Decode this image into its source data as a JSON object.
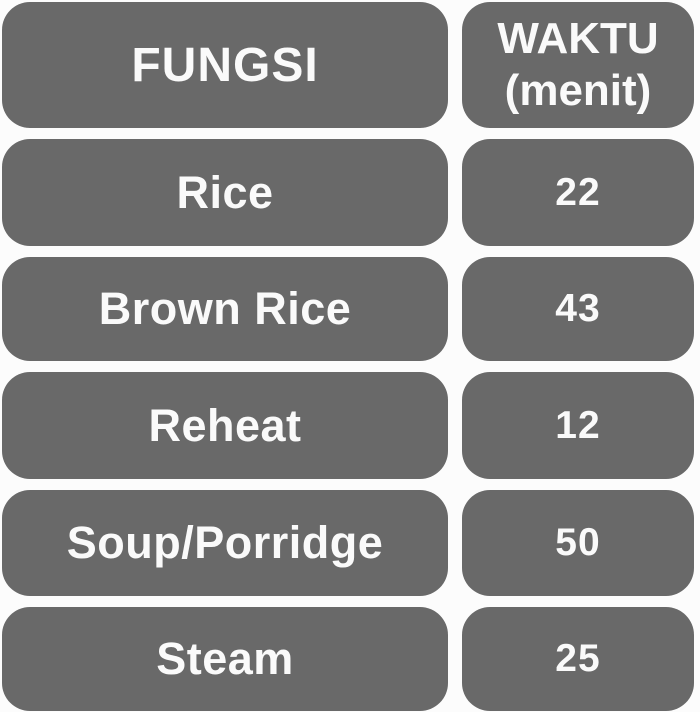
{
  "chart_data": {
    "type": "table",
    "title": "Fungsi dan waktu (rice cooker timing table)",
    "columns": [
      {
        "id": "fungsi",
        "label": "FUNGSI"
      },
      {
        "id": "waktu",
        "label_line1": "WAKTU",
        "label_line2": "(menit)",
        "label": "WAKTU (menit)"
      }
    ],
    "rows": [
      {
        "fungsi": "Rice",
        "waktu": "22"
      },
      {
        "fungsi": "Brown Rice",
        "waktu": "43"
      },
      {
        "fungsi": "Reheat",
        "waktu": "12"
      },
      {
        "fungsi": "Soup/Porridge",
        "waktu": "50"
      },
      {
        "fungsi": "Steam",
        "waktu": "25"
      }
    ]
  },
  "colors": {
    "cell_gray": "#696969",
    "background": "#fcfcfc",
    "text": "#fafafa"
  }
}
